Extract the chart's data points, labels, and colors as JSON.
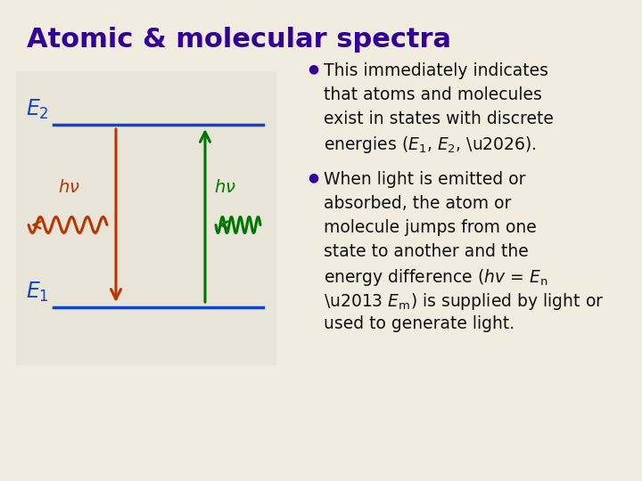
{
  "title": "Atomic & molecular spectra",
  "title_color": "#330099",
  "title_fontsize": 22,
  "bg_color": "#F0EDE0",
  "diagram_bg": "#E8E4D8",
  "bullet_color": "#330099",
  "text_color": "#111111",
  "bullet1_line1": "This immediately indicates",
  "bullet1_line2": "that atoms and molecules",
  "bullet1_line3": "exist in states with discrete",
  "bullet1_line4": "energies (",
  "bullet1_line4b": "E",
  "bullet1_line4c": "1",
  "bullet1_line4d": ", ",
  "bullet1_line4e": "E",
  "bullet1_line4f": "2",
  "bullet1_line4g": ", …).",
  "bullet2_line1": "When light is emitted or",
  "bullet2_line2": "absorbed, the atom or",
  "bullet2_line3": "molecule jumps from one",
  "bullet2_line4": "state to another and the",
  "bullet2_line5": "energy difference (",
  "bullet2_line6": "– ",
  "bullet2_line7": ") is supplied by light or",
  "bullet2_line8": "used to generate light.",
  "E2_label": "E",
  "E1_label": "E",
  "level_color": "#1144CC",
  "emission_color": "#BB3300",
  "absorption_color": "#007700",
  "text_fontsize": 13.5
}
